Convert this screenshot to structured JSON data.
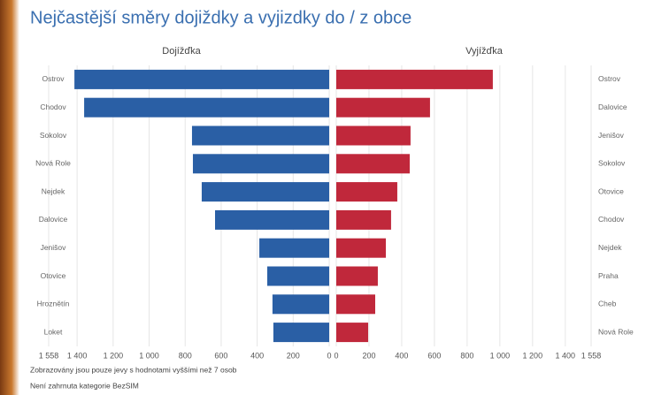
{
  "title": "Nejčastější směry dojiždky a vyjizdky do / z obce",
  "notes": [
    "Zobrazovány jsou pouze jevy s hodnotami vyššími než 7 osob",
    "Není zahrnuta kategorie BezSIM"
  ],
  "chart_data": [
    {
      "type": "bar",
      "orientation": "horizontal",
      "x_reversed": true,
      "title": "Dojížďka",
      "categories": [
        "Ostrov",
        "Chodov",
        "Sokolov",
        "Nová Role",
        "Nejdek",
        "Dalovice",
        "Jenišov",
        "Otovice",
        "Hroznětín",
        "Loket"
      ],
      "values": [
        1415,
        1361,
        762,
        757,
        708,
        634,
        388,
        344,
        315,
        310
      ],
      "color": "#2a5fa5",
      "xlim": [
        0,
        1558
      ],
      "xticks": [
        {
          "value": 1558,
          "label": "1 558"
        },
        {
          "value": 1400,
          "label": "1 400"
        },
        {
          "value": 1200,
          "label": "1 200"
        },
        {
          "value": 1000,
          "label": "1 000"
        },
        800,
        600,
        400,
        200,
        0
      ],
      "grid": true
    },
    {
      "type": "bar",
      "orientation": "horizontal",
      "x_reversed": false,
      "title": "Vyjížďka",
      "categories": [
        "Ostrov",
        "Dalovice",
        "Jenišov",
        "Sokolov",
        "Otovice",
        "Chodov",
        "Nejdek",
        "Praha",
        "Cheb",
        "Nová Role"
      ],
      "values": [
        957,
        573,
        454,
        449,
        373,
        335,
        303,
        254,
        238,
        195
      ],
      "color": "#c0283b",
      "xlim": [
        0,
        1558
      ],
      "xticks": [
        0,
        200,
        400,
        600,
        800,
        {
          "value": 1000,
          "label": "1 000"
        },
        {
          "value": 1200,
          "label": "1 200"
        },
        {
          "value": 1400,
          "label": "1 400"
        },
        {
          "value": 1558,
          "label": "1 558"
        }
      ],
      "grid": true
    }
  ]
}
